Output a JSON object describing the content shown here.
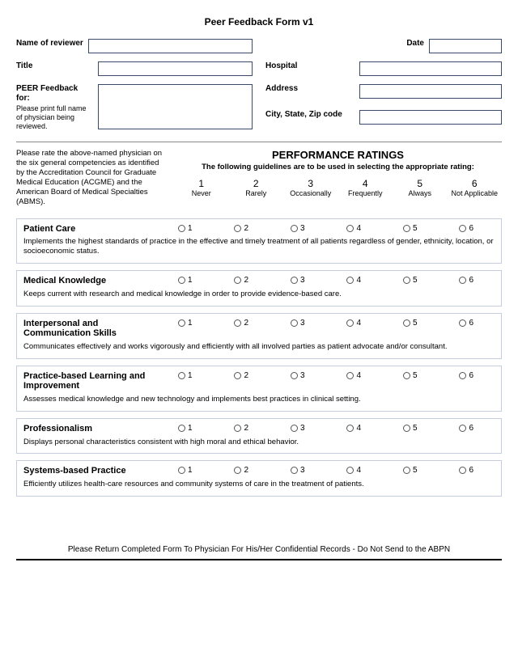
{
  "form": {
    "title": "Peer Feedback Form v1",
    "labels": {
      "reviewer": "Name of reviewer",
      "date": "Date",
      "title": "Title",
      "hospital": "Hospital",
      "peer_heading": "PEER Feedback for:",
      "peer_sub": "Please print full name of physician being reviewed.",
      "address": "Address",
      "city": "City, State, Zip code"
    },
    "instructions": "Please rate the above-named physician on the six general competencies as identified by the Accreditation Council for Graduate Medical Education (ACGME) and the American Board of Medical Specialties (ABMS).",
    "ratings_title": "PERFORMANCE RATINGS",
    "ratings_sub": "The following guidelines are to be used in selecting the appropriate rating:",
    "scale": [
      {
        "num": "1",
        "label": "Never"
      },
      {
        "num": "2",
        "label": "Rarely"
      },
      {
        "num": "3",
        "label": "Occasionally"
      },
      {
        "num": "4",
        "label": "Frequently"
      },
      {
        "num": "5",
        "label": "Always"
      },
      {
        "num": "6",
        "label": "Not Applicable"
      }
    ],
    "competencies": [
      {
        "title": "Patient Care",
        "desc": "Implements the highest standards of practice in the effective and timely treatment of all patients regardless of gender, ethnicity, location, or socioeconomic status."
      },
      {
        "title": "Medical Knowledge",
        "desc": "Keeps current with research and medical knowledge in order to provide evidence-based care."
      },
      {
        "title": "Interpersonal and Communication Skills",
        "desc": "Communicates effectively and works vigorously and efficiently with all involved parties as patient advocate and/or consultant."
      },
      {
        "title": "Practice-based Learning and Improvement",
        "desc": "Assesses medical knowledge and new technology and implements best practices in clinical setting."
      },
      {
        "title": "Professionalism",
        "desc": "Displays personal characteristics consistent with high moral and ethical behavior."
      },
      {
        "title": "Systems-based Practice",
        "desc": "Efficiently utilizes health-care resources and community systems of care in the treatment of patients."
      }
    ],
    "footer": "Please Return Completed Form To Physician For His/Her Confidential Records - Do Not Send to the ABPN"
  }
}
